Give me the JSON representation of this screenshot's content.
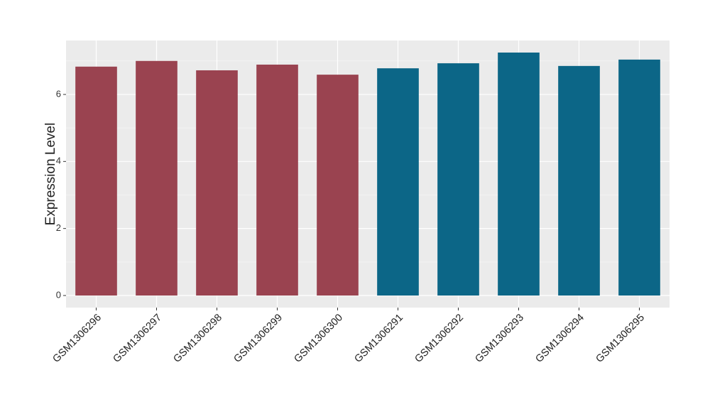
{
  "chart_data": {
    "type": "bar",
    "y_label": "Expression Level",
    "categories": [
      "GSM1306296",
      "GSM1306297",
      "GSM1306298",
      "GSM1306299",
      "GSM1306300",
      "GSM1306291",
      "GSM1306292",
      "GSM1306293",
      "GSM1306294",
      "GSM1306295"
    ],
    "values": [
      6.83,
      7.0,
      6.72,
      6.89,
      6.59,
      6.78,
      6.93,
      7.25,
      6.85,
      7.04
    ],
    "colors": [
      "#9a4350",
      "#9a4350",
      "#9a4350",
      "#9a4350",
      "#9a4350",
      "#0c6687",
      "#0c6687",
      "#0c6687",
      "#0c6687",
      "#0c6687"
    ],
    "ylim": [
      -0.36,
      7.61
    ],
    "yticks": [
      0,
      2,
      4,
      6
    ],
    "minor_yticks": [
      1,
      3,
      5,
      7
    ],
    "grid": true
  }
}
